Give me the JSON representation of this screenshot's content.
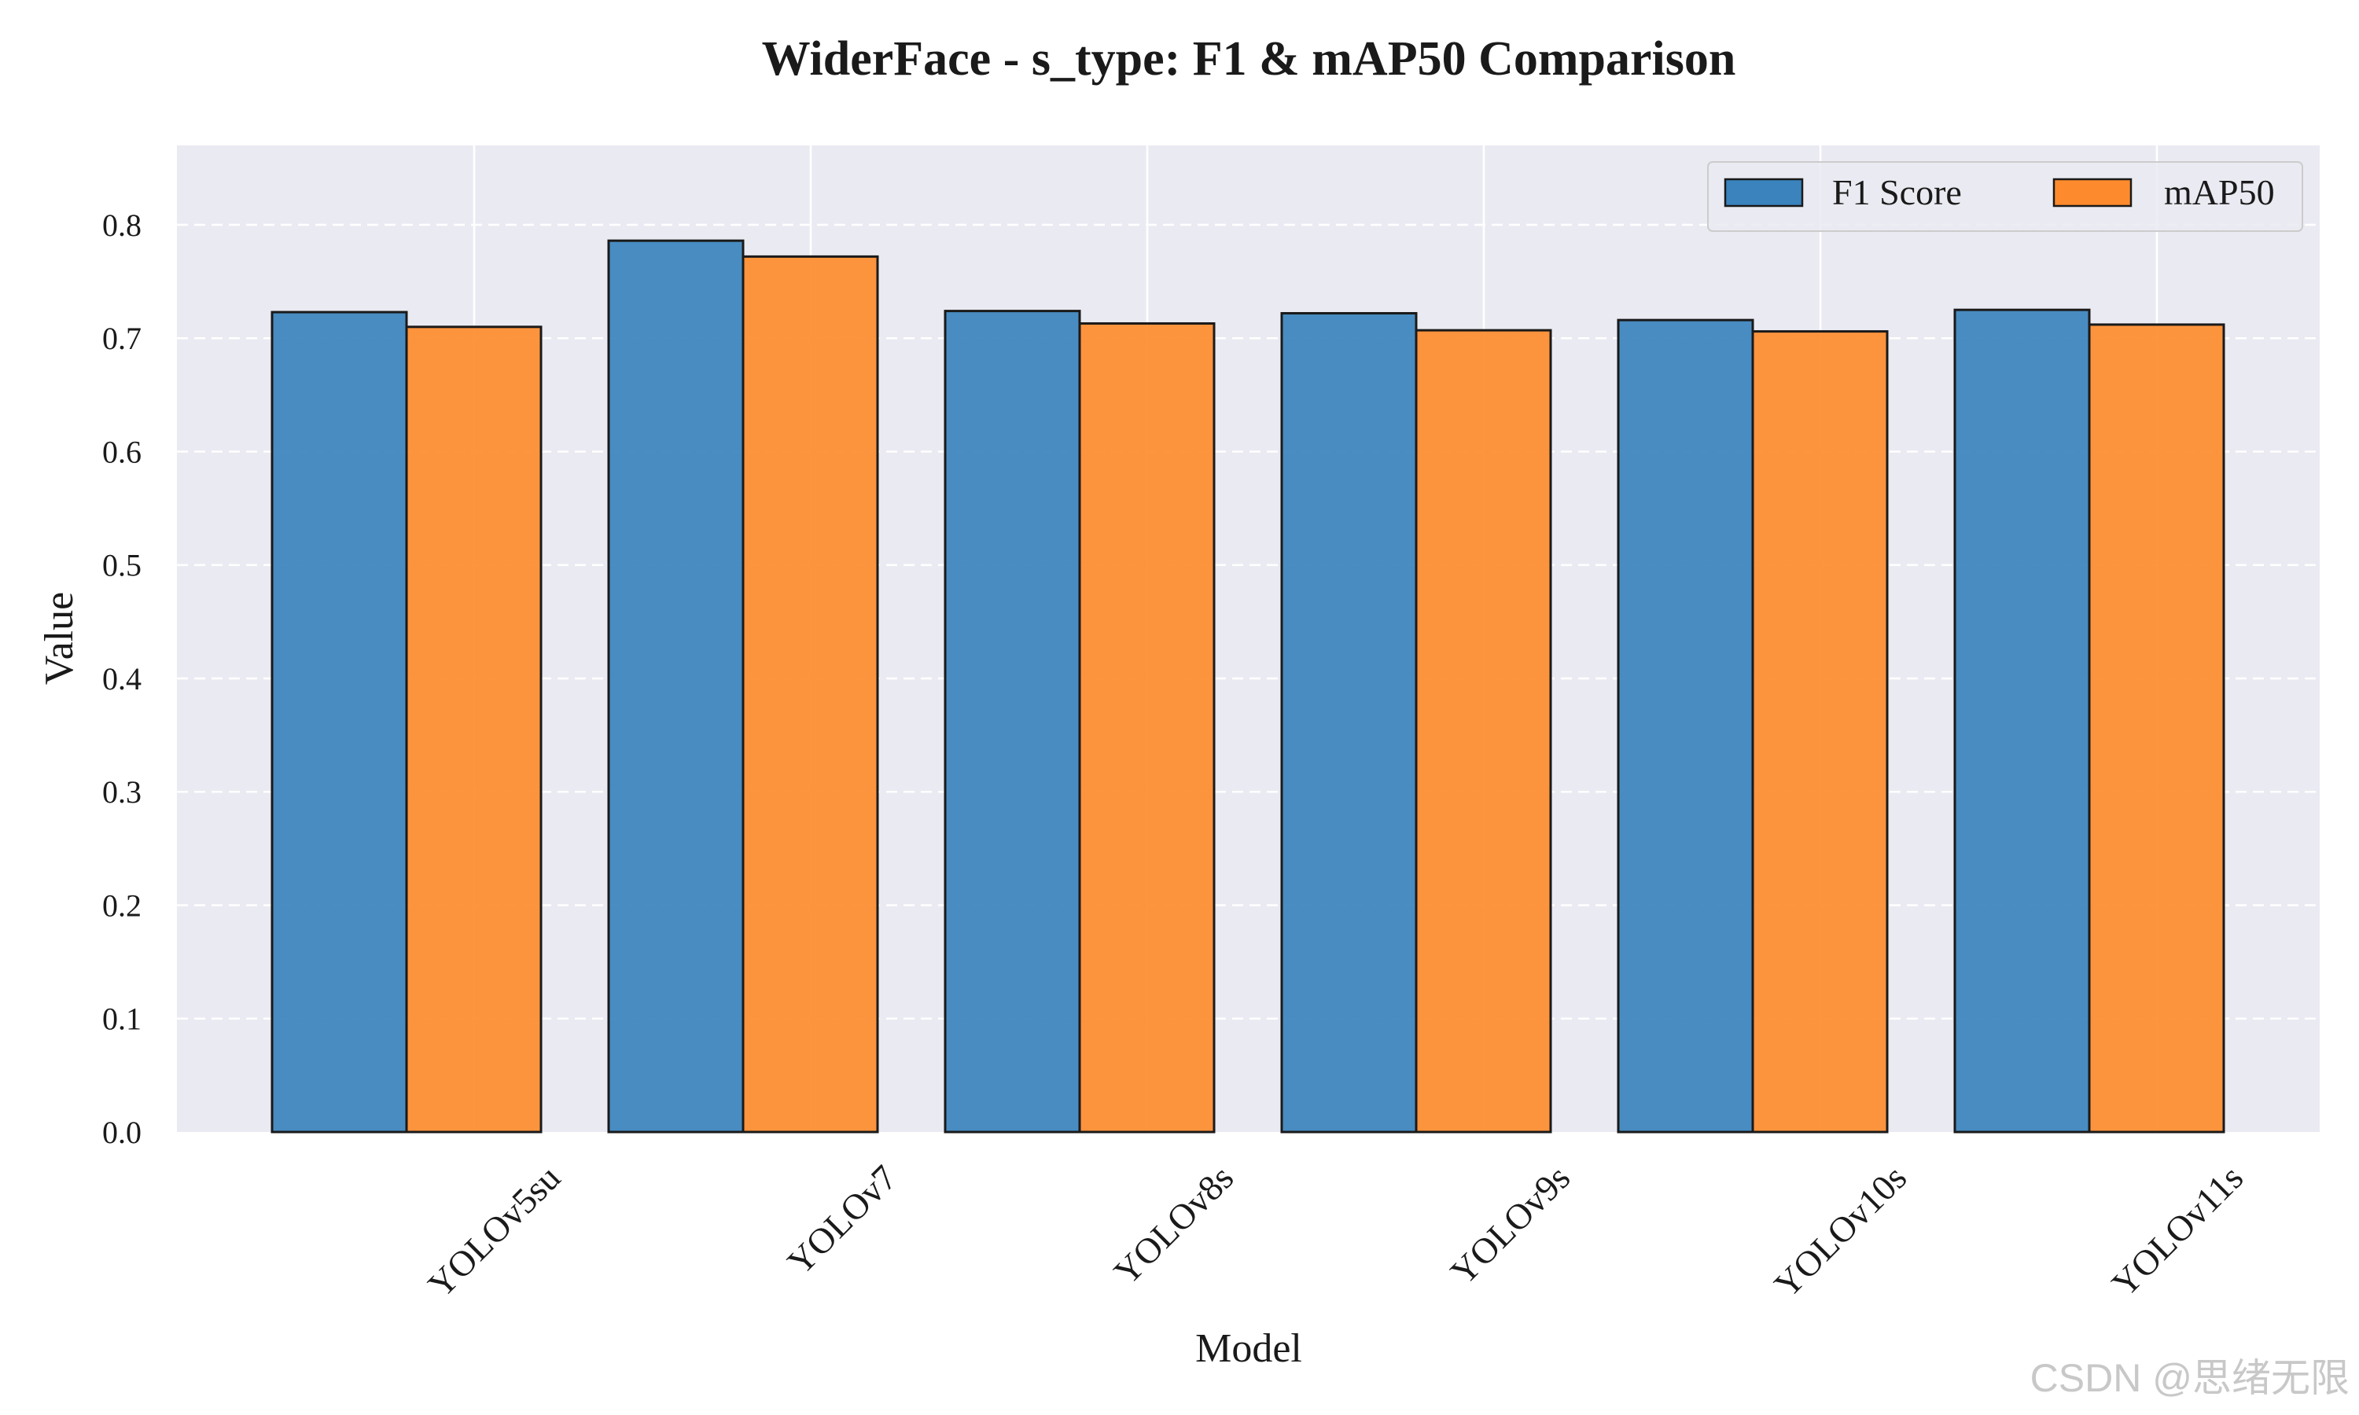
{
  "chart_data": {
    "type": "bar",
    "title": "WiderFace - s_type: F1 & mAP50 Comparison",
    "xlabel": "Model",
    "ylabel": "Value",
    "categories": [
      "YOLOv5su",
      "YOLOv7",
      "YOLOv8s",
      "YOLOv9s",
      "YOLOv10s",
      "YOLOv11s"
    ],
    "series": [
      {
        "name": "F1 Score",
        "color": "#3a83bd",
        "values": [
          0.723,
          0.786,
          0.724,
          0.722,
          0.716,
          0.725
        ]
      },
      {
        "name": "mAP50",
        "color": "#fd8b2e",
        "values": [
          0.71,
          0.772,
          0.713,
          0.707,
          0.706,
          0.712
        ]
      }
    ],
    "ylim": [
      0,
      0.87
    ],
    "yticks": [
      "0.0",
      "0.1",
      "0.2",
      "0.3",
      "0.4",
      "0.5",
      "0.6",
      "0.7",
      "0.8"
    ],
    "grid": true,
    "legend_position": "top-right",
    "background_color": "#eaeaf2"
  },
  "watermark": "CSDN @思绪无限"
}
